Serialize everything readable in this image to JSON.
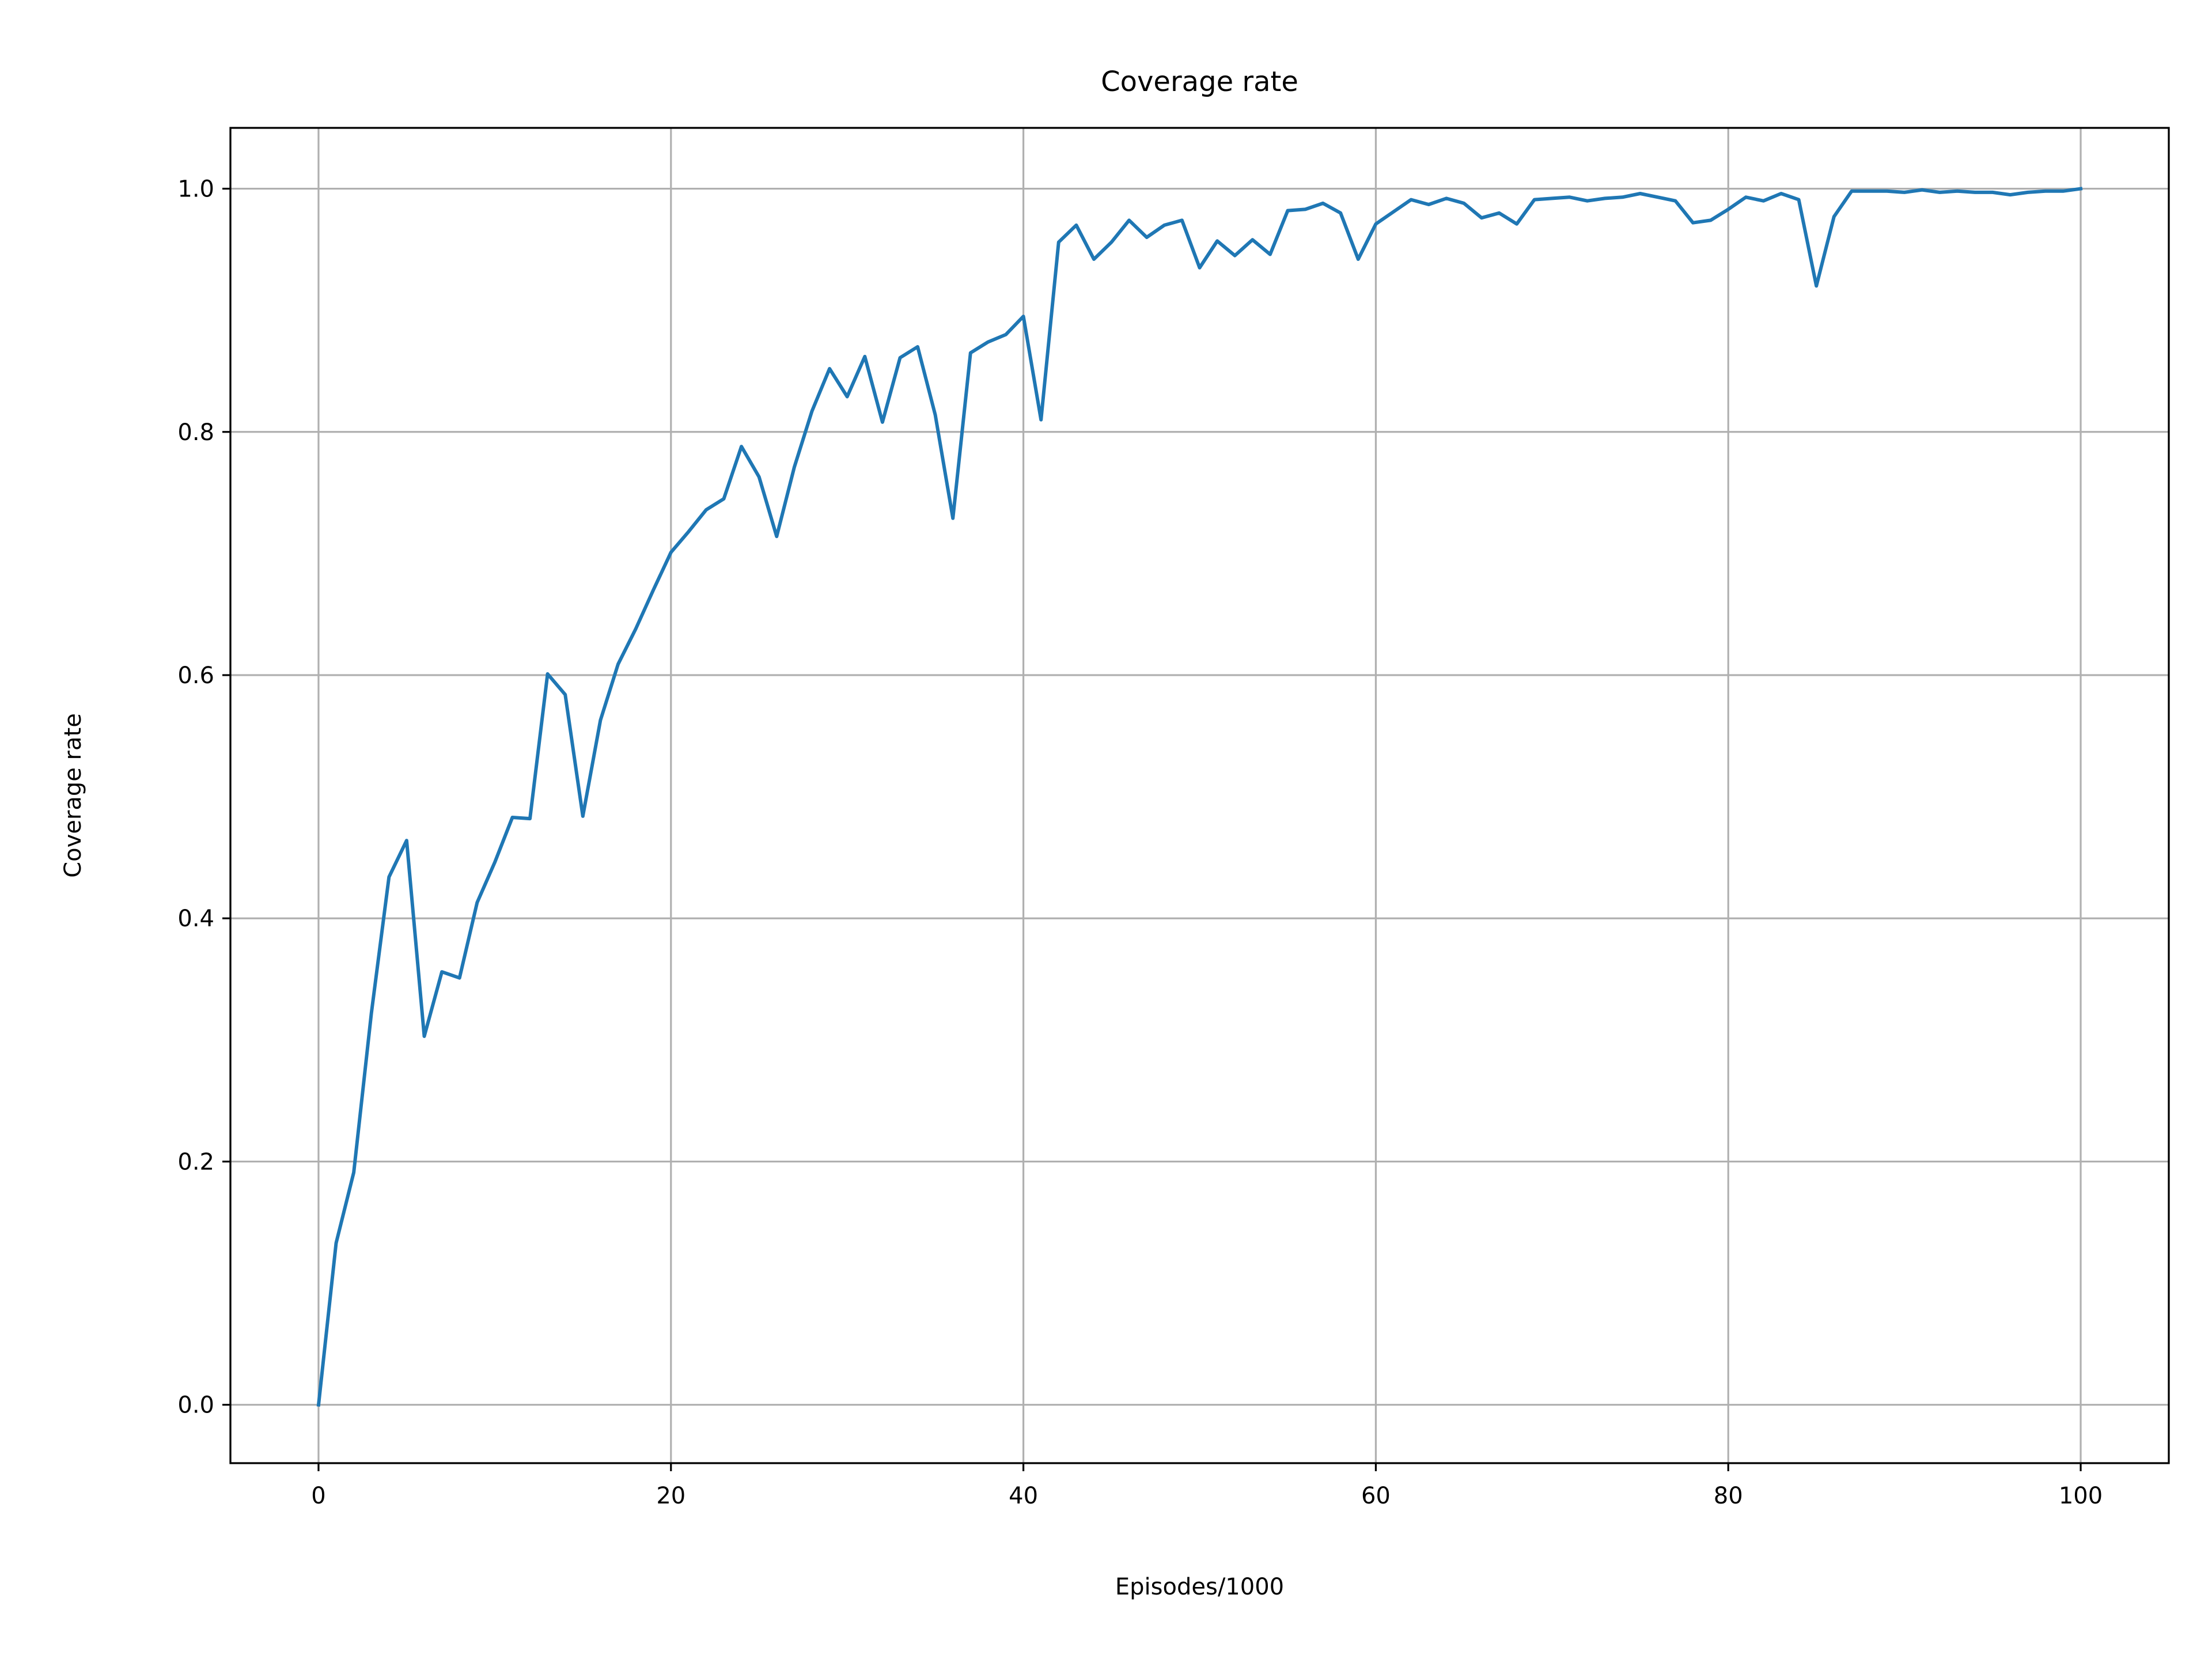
{
  "chart_data": {
    "type": "line",
    "title": "Coverage rate",
    "xlabel": "Episodes/1000",
    "ylabel": "Coverage rate",
    "xlim": [
      -5,
      105
    ],
    "ylim": [
      -0.048,
      1.05
    ],
    "xticks": [
      0,
      20,
      40,
      60,
      80,
      100
    ],
    "xtick_labels": [
      "0",
      "20",
      "40",
      "60",
      "80",
      "100"
    ],
    "yticks": [
      0.0,
      0.2,
      0.4,
      0.6,
      0.8,
      1.0
    ],
    "ytick_labels": [
      "0.0",
      "0.2",
      "0.4",
      "0.6",
      "0.8",
      "1.0"
    ],
    "grid": true,
    "series": [
      {
        "color": "#1f77b4",
        "x": [
          0,
          1,
          2,
          3,
          4,
          5,
          6,
          7,
          8,
          9,
          10,
          11,
          12,
          13,
          14,
          15,
          16,
          17,
          18,
          19,
          20,
          21,
          22,
          23,
          24,
          25,
          26,
          27,
          28,
          29,
          30,
          31,
          32,
          33,
          34,
          35,
          36,
          37,
          38,
          39,
          40,
          41,
          42,
          43,
          44,
          45,
          46,
          47,
          48,
          49,
          50,
          51,
          52,
          53,
          54,
          55,
          56,
          57,
          58,
          59,
          60,
          61,
          62,
          63,
          64,
          65,
          66,
          67,
          68,
          69,
          70,
          71,
          72,
          73,
          74,
          75,
          76,
          77,
          78,
          79,
          80,
          81,
          82,
          83,
          84,
          85,
          86,
          87,
          88,
          89,
          90,
          91,
          92,
          93,
          94,
          95,
          96,
          97,
          98,
          99,
          100
        ],
        "values": [
          0.0,
          0.133,
          0.191,
          0.322,
          0.434,
          0.464,
          0.303,
          0.356,
          0.351,
          0.413,
          0.446,
          0.483,
          0.482,
          0.601,
          0.584,
          0.484,
          0.563,
          0.609,
          0.638,
          0.67,
          0.701,
          0.718,
          0.736,
          0.745,
          0.788,
          0.763,
          0.714,
          0.771,
          0.817,
          0.852,
          0.829,
          0.862,
          0.808,
          0.861,
          0.87,
          0.814,
          0.729,
          0.865,
          0.874,
          0.88,
          0.895,
          0.81,
          0.956,
          0.97,
          0.942,
          0.956,
          0.974,
          0.96,
          0.97,
          0.974,
          0.935,
          0.957,
          0.945,
          0.958,
          0.946,
          0.982,
          0.983,
          0.988,
          0.98,
          0.942,
          0.971,
          0.981,
          0.991,
          0.987,
          0.992,
          0.988,
          0.976,
          0.98,
          0.971,
          0.991,
          0.992,
          0.993,
          0.99,
          0.992,
          0.993,
          0.996,
          0.993,
          0.99,
          0.972,
          0.974,
          0.983,
          0.993,
          0.99,
          0.996,
          0.991,
          0.92,
          0.977,
          0.998,
          0.998,
          0.998,
          0.997,
          0.999,
          0.997,
          0.998,
          0.997,
          0.997,
          0.995,
          0.997,
          0.998,
          0.998,
          1.0
        ]
      }
    ]
  }
}
